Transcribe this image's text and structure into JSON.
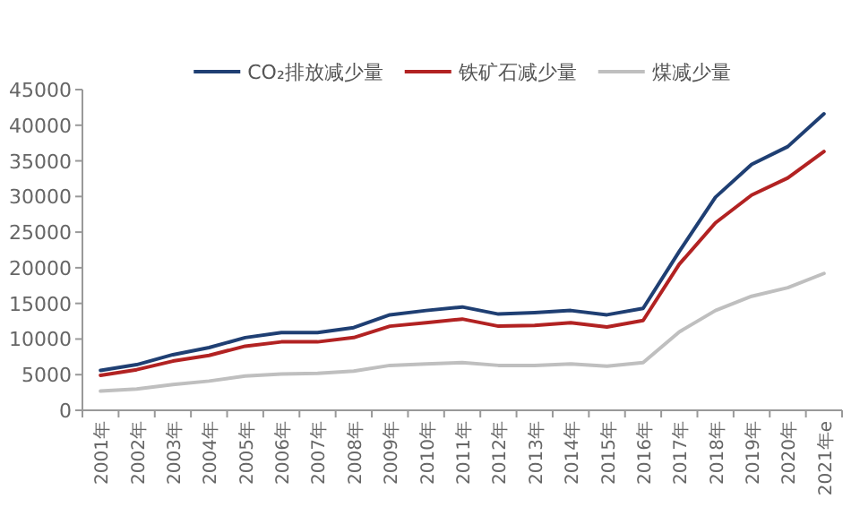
{
  "chart_data": {
    "type": "line",
    "categories": [
      "2001年",
      "2002年",
      "2003年",
      "2004年",
      "2005年",
      "2006年",
      "2007年",
      "2008年",
      "2009年",
      "2010年",
      "2011年",
      "2012年",
      "2013年",
      "2014年",
      "2015年",
      "2016年",
      "2017年",
      "2018年",
      "2019年",
      "2020年",
      "2021年e"
    ],
    "series": [
      {
        "name": "CO₂排放减少量",
        "color": "#1f3f73",
        "values": [
          5600,
          6400,
          7800,
          8800,
          10200,
          10900,
          10900,
          11600,
          13400,
          14000,
          14500,
          13500,
          13700,
          14000,
          13400,
          14300,
          22300,
          29900,
          34500,
          37000,
          41600
        ]
      },
      {
        "name": "铁矿石减少量",
        "color": "#b22222",
        "values": [
          4900,
          5700,
          6900,
          7700,
          9000,
          9600,
          9600,
          10200,
          11800,
          12300,
          12800,
          11800,
          11900,
          12300,
          11700,
          12600,
          20500,
          26300,
          30200,
          32600,
          36300
        ]
      },
      {
        "name": "煤减少量",
        "color": "#bfbfbf",
        "values": [
          2700,
          3000,
          3600,
          4100,
          4800,
          5100,
          5200,
          5500,
          6300,
          6500,
          6700,
          6300,
          6300,
          6500,
          6200,
          6700,
          11000,
          14000,
          16000,
          17200,
          19200
        ]
      }
    ],
    "ylim": [
      0,
      45000
    ],
    "yticks": [
      0,
      5000,
      10000,
      15000,
      20000,
      25000,
      30000,
      35000,
      40000,
      45000
    ],
    "grid": false,
    "legend": "top",
    "marker": "none",
    "line_style": "solid"
  }
}
